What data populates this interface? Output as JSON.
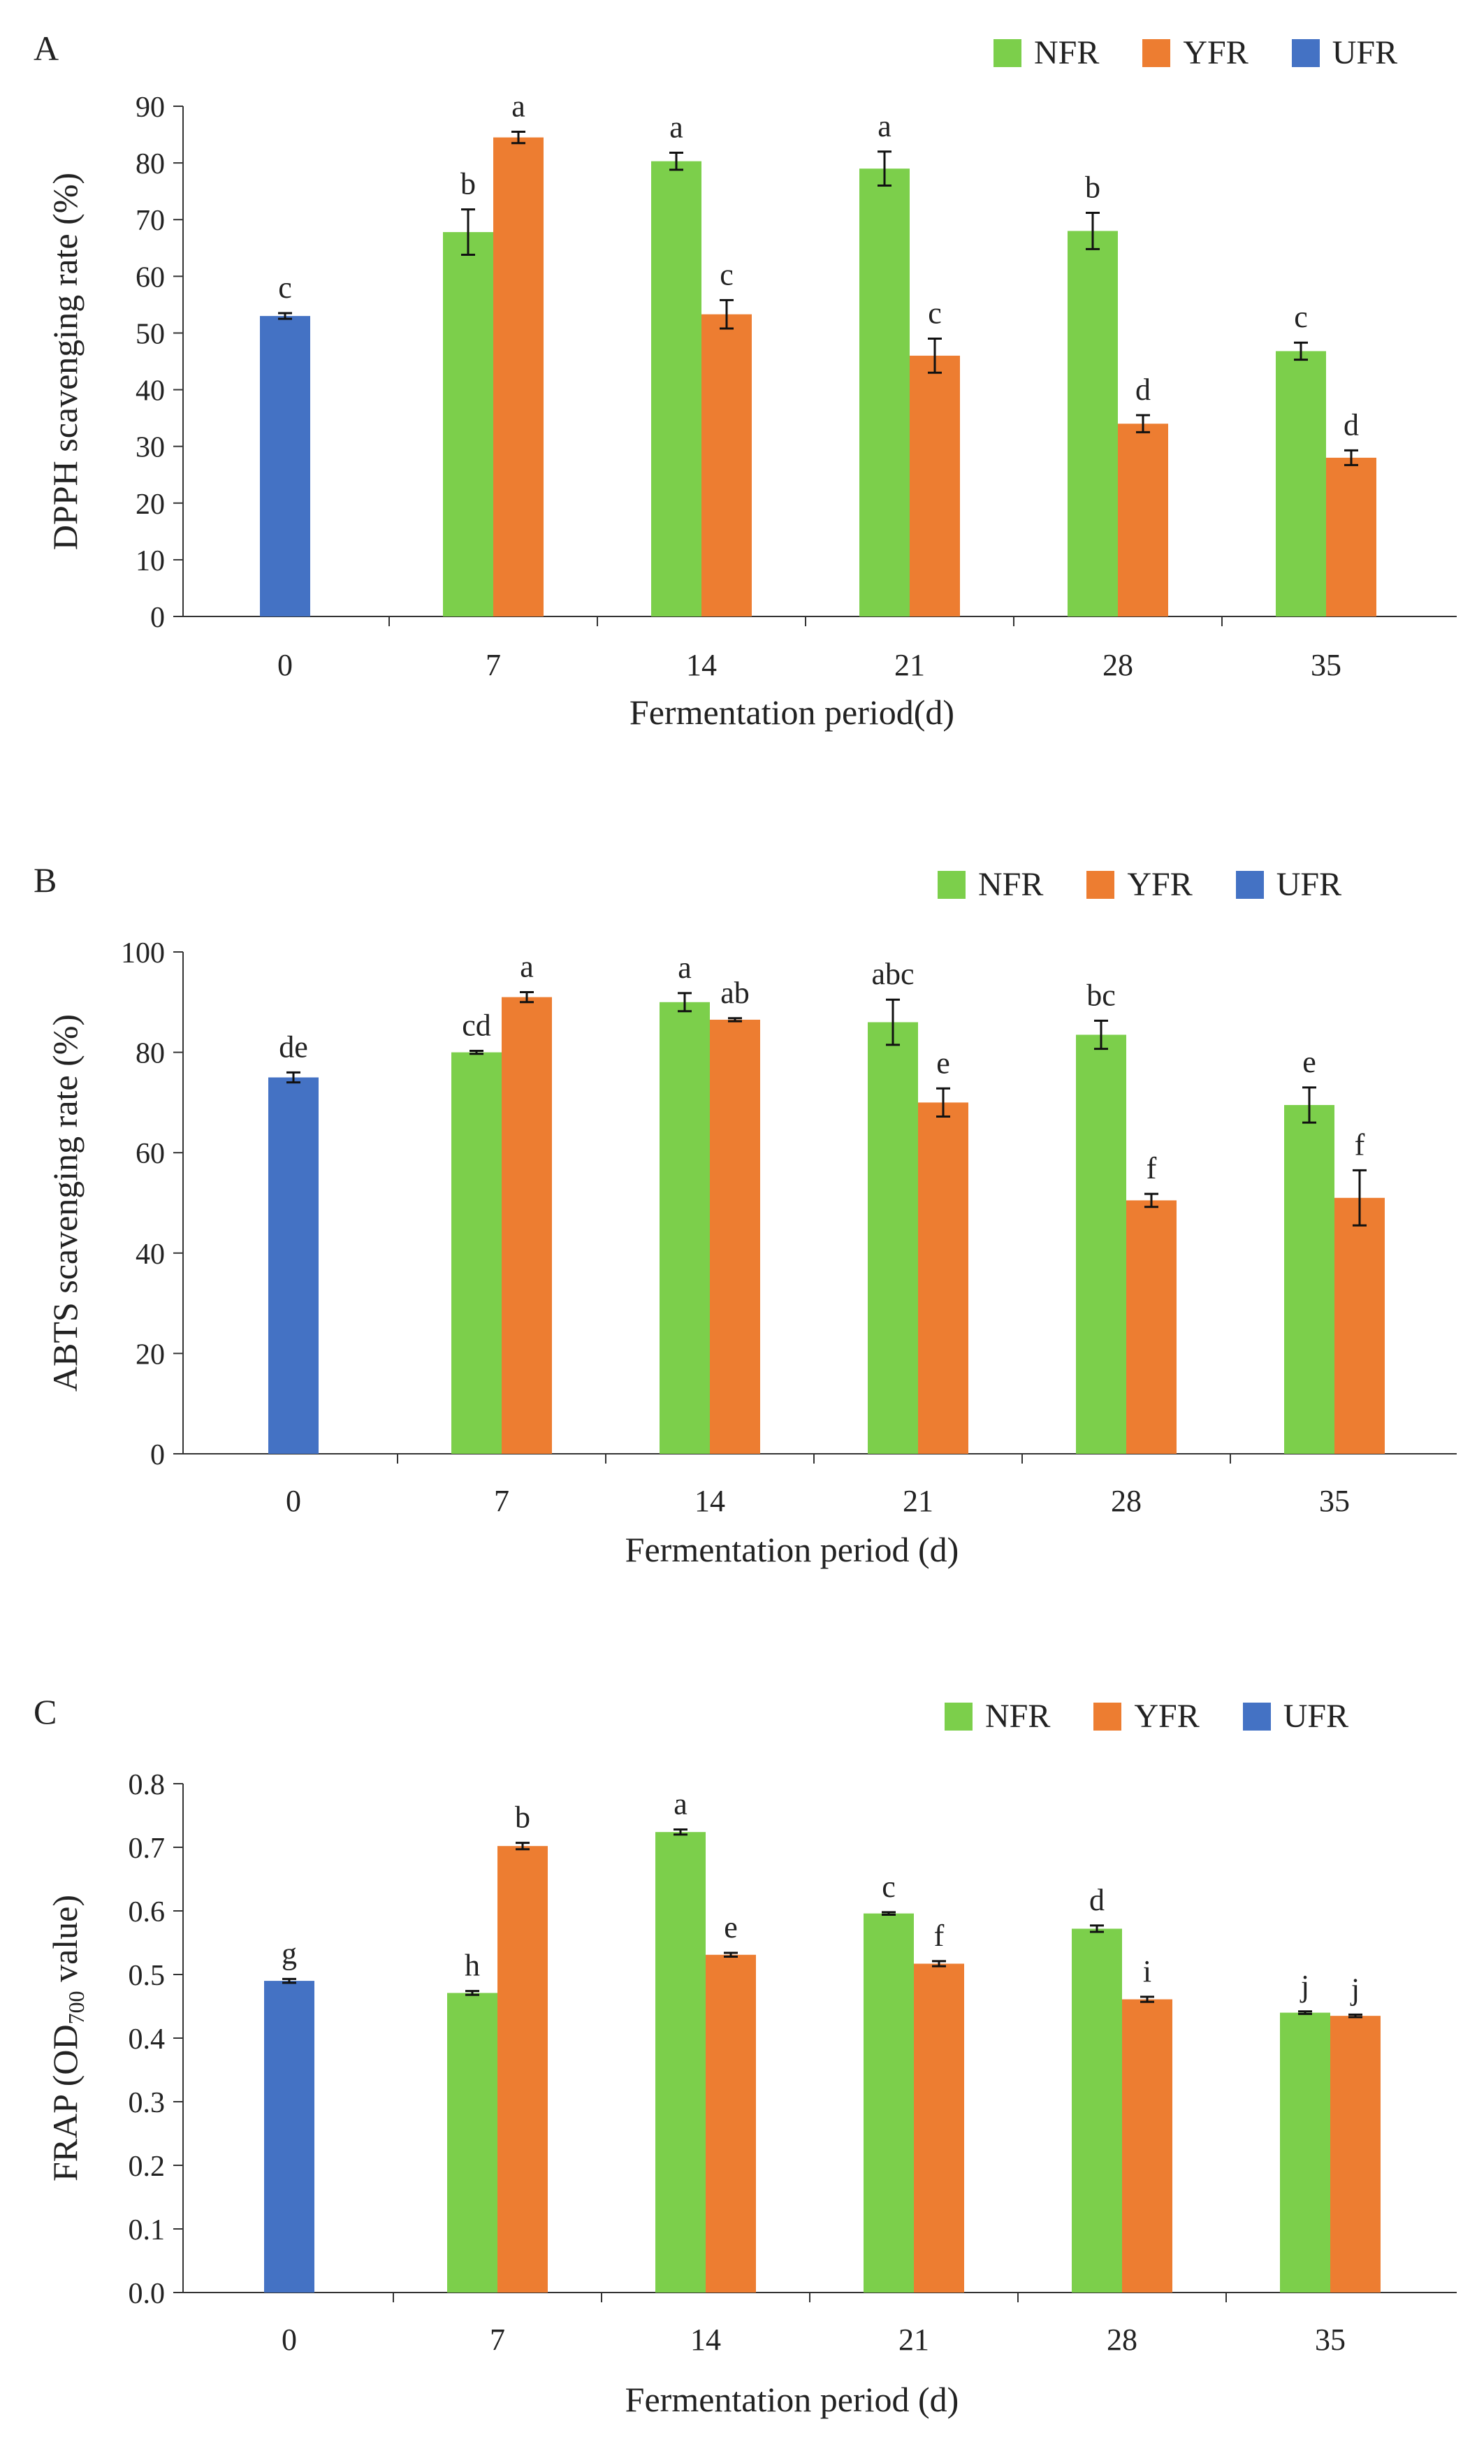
{
  "colors": {
    "NFR": "#7ccf4b",
    "YFR": "#ed7d31",
    "UFR": "#4472c4"
  },
  "legend": [
    "NFR",
    "YFR",
    "UFR"
  ],
  "chart_data": [
    {
      "panel": "A",
      "type": "bar",
      "ylabel": "DPPH scavenging rate (%)",
      "xlabel": "Fermentation period(d)",
      "ylim": [
        0,
        90
      ],
      "yticks": [
        0,
        10,
        20,
        30,
        40,
        50,
        60,
        70,
        80,
        90
      ],
      "categories": [
        "0",
        "7",
        "14",
        "21",
        "28",
        "35"
      ],
      "series": [
        {
          "name": "UFR",
          "values": [
            53,
            null,
            null,
            null,
            null,
            null
          ],
          "errors": [
            0.5,
            null,
            null,
            null,
            null,
            null
          ],
          "labels": [
            "c",
            null,
            null,
            null,
            null,
            null
          ]
        },
        {
          "name": "NFR",
          "values": [
            null,
            67.8,
            80.3,
            79,
            68,
            46.8
          ],
          "errors": [
            null,
            4,
            1.5,
            3,
            3.2,
            1.5
          ],
          "labels": [
            null,
            "b",
            "a",
            "a",
            "b",
            "c"
          ]
        },
        {
          "name": "YFR",
          "values": [
            null,
            84.5,
            53.3,
            46,
            34,
            28
          ],
          "errors": [
            null,
            1,
            2.5,
            3,
            1.5,
            1.3
          ],
          "labels": [
            null,
            "a",
            "c",
            "c",
            "d",
            "d"
          ]
        }
      ]
    },
    {
      "panel": "B",
      "type": "bar",
      "ylabel": "ABTS scavenging rate (%)",
      "xlabel": "Fermentation period (d)",
      "ylim": [
        0,
        100
      ],
      "yticks": [
        0,
        20,
        40,
        60,
        80,
        100
      ],
      "categories": [
        "0",
        "7",
        "14",
        "21",
        "28",
        "35"
      ],
      "series": [
        {
          "name": "UFR",
          "values": [
            75,
            null,
            null,
            null,
            null,
            null
          ],
          "errors": [
            1,
            null,
            null,
            null,
            null,
            null
          ],
          "labels": [
            "de",
            null,
            null,
            null,
            null,
            null
          ]
        },
        {
          "name": "NFR",
          "values": [
            null,
            80,
            90,
            86,
            83.5,
            69.5
          ],
          "errors": [
            null,
            0.3,
            1.8,
            4.5,
            2.8,
            3.5
          ],
          "labels": [
            null,
            "cd",
            "a",
            "abc",
            "bc",
            "e"
          ]
        },
        {
          "name": "YFR",
          "values": [
            null,
            91,
            86.5,
            70,
            50.5,
            51
          ],
          "errors": [
            null,
            1,
            0.3,
            2.8,
            1.3,
            5.5
          ],
          "labels": [
            null,
            "a",
            "ab",
            "e",
            "f",
            "f"
          ]
        }
      ]
    },
    {
      "panel": "C",
      "type": "bar",
      "ylabel": "FRAP (OD700 value)",
      "ylabel_main": "FRAP (OD",
      "ylabel_sub": "700",
      "ylabel_tail": " value)",
      "xlabel": "Fermentation period (d)",
      "ylim": [
        0,
        0.8
      ],
      "yticks": [
        "0.0",
        "0.1",
        "0.2",
        "0.3",
        "0.4",
        "0.5",
        "0.6",
        "0.7",
        "0.8"
      ],
      "categories": [
        "0",
        "7",
        "14",
        "21",
        "28",
        "35"
      ],
      "series": [
        {
          "name": "UFR",
          "values": [
            0.49,
            null,
            null,
            null,
            null,
            null
          ],
          "errors": [
            0.003,
            null,
            null,
            null,
            null,
            null
          ],
          "labels": [
            "g",
            null,
            null,
            null,
            null,
            null
          ]
        },
        {
          "name": "NFR",
          "values": [
            null,
            0.471,
            0.724,
            0.596,
            0.572,
            0.44
          ],
          "errors": [
            null,
            0.003,
            0.004,
            0.002,
            0.005,
            0.002
          ],
          "labels": [
            null,
            "h",
            "a",
            "c",
            "d",
            "j"
          ]
        },
        {
          "name": "YFR",
          "values": [
            null,
            0.702,
            0.531,
            0.517,
            0.461,
            0.435
          ],
          "errors": [
            null,
            0.005,
            0.003,
            0.004,
            0.004,
            0.002
          ],
          "labels": [
            null,
            "b",
            "e",
            "f",
            "i",
            "j"
          ]
        }
      ]
    }
  ]
}
